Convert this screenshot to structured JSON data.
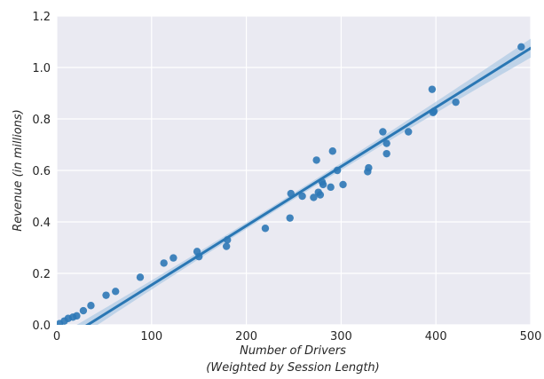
{
  "chart_data": {
    "type": "scatter",
    "xlabel_line1": "Number of Drivers",
    "xlabel_line2": "(Weighted by Session Length)",
    "ylabel": "Revenue (in millions)",
    "xlim": [
      0,
      500
    ],
    "ylim": [
      0,
      1.2
    ],
    "xticks": [
      "0",
      "100",
      "200",
      "300",
      "400",
      "500"
    ],
    "yticks": [
      "0.0",
      "0.2",
      "0.4",
      "0.6",
      "0.8",
      "1.0",
      "1.2"
    ],
    "grid": true,
    "points": [
      {
        "x": 3,
        "y": 0.005
      },
      {
        "x": 8,
        "y": 0.015
      },
      {
        "x": 12,
        "y": 0.025
      },
      {
        "x": 17,
        "y": 0.03
      },
      {
        "x": 21,
        "y": 0.035
      },
      {
        "x": 28,
        "y": 0.055
      },
      {
        "x": 36,
        "y": 0.075
      },
      {
        "x": 52,
        "y": 0.115
      },
      {
        "x": 62,
        "y": 0.13
      },
      {
        "x": 88,
        "y": 0.185
      },
      {
        "x": 113,
        "y": 0.24
      },
      {
        "x": 123,
        "y": 0.26
      },
      {
        "x": 148,
        "y": 0.285
      },
      {
        "x": 150,
        "y": 0.265
      },
      {
        "x": 179,
        "y": 0.305
      },
      {
        "x": 180,
        "y": 0.33
      },
      {
        "x": 220,
        "y": 0.375
      },
      {
        "x": 246,
        "y": 0.415
      },
      {
        "x": 247,
        "y": 0.51
      },
      {
        "x": 259,
        "y": 0.5
      },
      {
        "x": 271,
        "y": 0.495
      },
      {
        "x": 274,
        "y": 0.64
      },
      {
        "x": 276,
        "y": 0.515
      },
      {
        "x": 278,
        "y": 0.505
      },
      {
        "x": 280,
        "y": 0.555
      },
      {
        "x": 281,
        "y": 0.545
      },
      {
        "x": 289,
        "y": 0.535
      },
      {
        "x": 291,
        "y": 0.675
      },
      {
        "x": 296,
        "y": 0.6
      },
      {
        "x": 302,
        "y": 0.545
      },
      {
        "x": 328,
        "y": 0.595
      },
      {
        "x": 329,
        "y": 0.61
      },
      {
        "x": 344,
        "y": 0.75
      },
      {
        "x": 348,
        "y": 0.705
      },
      {
        "x": 348,
        "y": 0.665
      },
      {
        "x": 371,
        "y": 0.75
      },
      {
        "x": 396,
        "y": 0.915
      },
      {
        "x": 397,
        "y": 0.825
      },
      {
        "x": 398,
        "y": 0.83
      },
      {
        "x": 421,
        "y": 0.865
      },
      {
        "x": 490,
        "y": 1.08
      }
    ],
    "regression": {
      "x_start": 0,
      "x_end": 500,
      "y_start": -0.075,
      "y_end": 1.075
    },
    "colors": {
      "background": "#eaeaf2",
      "grid": "#ffffff",
      "points": "#2e78b6",
      "line": "#2a77b4",
      "band": "#9bbfe0"
    }
  }
}
